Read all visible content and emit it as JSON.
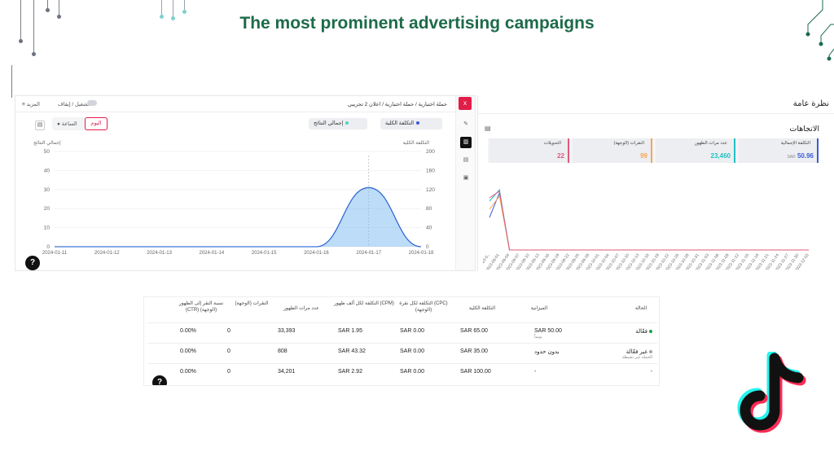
{
  "slide": {
    "title": "The most prominent advertising campaigns"
  },
  "left_panel": {
    "more_label": "≡ المزيد",
    "toggle_label": "تشغيل / إيقاف",
    "breadcrumb": "حملة اختبارية / حملة اختبارية / اعلان 2 تجريبي",
    "close_label": "x",
    "seg_hour": "الساعة",
    "seg_day": "اليوم",
    "pill_total_results": "إجمالي النتائج",
    "pill_total_cost": "التكلفة الكلية",
    "colors": {
      "cost": "#3b5bdb",
      "results": "#4fd1c5"
    }
  },
  "right_panel": {
    "title": "نظرة عامة",
    "section_title": "الاتجاهات",
    "kpis": [
      {
        "label": "التكلفة الإجمالية",
        "value": "50.96",
        "currency": "SAR",
        "color": "#3b5bdb"
      },
      {
        "label": "عدد مرات الظهور",
        "value": "23,460",
        "color": "#22c1c3"
      },
      {
        "label": "النقرات (الوجهة)",
        "value": "99",
        "color": "#f2a65a"
      },
      {
        "label": "التحويلات",
        "value": "22",
        "color": "#e05a7a"
      }
    ]
  },
  "chart_data": [
    {
      "type": "line",
      "x": [
        "2024-01-11",
        "2024-01-12",
        "2024-01-13",
        "2024-01-14",
        "2024-01-15",
        "2024-01-16",
        "2024-01-17",
        "2024-01-18"
      ],
      "series": [
        {
          "name": "التكلفة الكلية",
          "values": [
            0,
            0,
            0,
            0,
            0,
            0,
            124,
            0
          ]
        },
        {
          "name": "إجمالي النتائج",
          "values": [
            0,
            0,
            0,
            0,
            0,
            0,
            31,
            0
          ]
        }
      ],
      "ylabel": "إجمالي النتائج",
      "ylabel_right": "التكلفة الكلية",
      "ylim": [
        0,
        50
      ],
      "ylim_right": [
        0,
        200
      ],
      "y_ticks": [
        0,
        10,
        20,
        30,
        40,
        50
      ],
      "y_ticks_right": [
        0,
        40,
        80,
        120,
        160,
        200
      ],
      "grid": true
    },
    {
      "type": "line",
      "x": [
        "2023-0..",
        "2023-09-01",
        "2023-09-04",
        "2023-09-07",
        "2023-09-10",
        "2023-09-13",
        "2023-09-16",
        "2023-09-19",
        "2023-09-22",
        "2023-09-25",
        "2023-09-28",
        "2023-10-01",
        "2023-10-04",
        "2023-10-07",
        "2023-10-10",
        "2023-10-13",
        "2023-10-16",
        "2023-10-19",
        "2023-10-22",
        "2023-10-25",
        "2023-10-28",
        "2023-10-31",
        "2023-11-03",
        "2023-11-06",
        "2023-11-09",
        "2023-11-12",
        "2023-11-15",
        "2023-11-18",
        "2023-11-21",
        "2023-11-24",
        "2023-11-27",
        "2023-11-30",
        "2023-12-03"
      ],
      "series": [
        {
          "name": "التكلفة الإجمالية",
          "values": [
            20,
            35,
            0,
            0,
            0,
            0,
            0,
            0,
            0,
            0,
            0,
            0,
            0,
            0,
            0,
            0,
            0,
            0,
            0,
            0,
            0,
            0,
            0,
            0,
            0,
            0,
            0,
            0,
            0,
            0,
            0,
            0,
            0
          ]
        },
        {
          "name": "عدد مرات الظهور",
          "values": [
            30,
            37,
            0,
            0,
            0,
            0,
            0,
            0,
            0,
            0,
            0,
            0,
            0,
            0,
            0,
            0,
            0,
            0,
            0,
            0,
            0,
            0,
            0,
            0,
            0,
            0,
            0,
            0,
            0,
            0,
            0,
            0,
            0
          ]
        },
        {
          "name": "النقرات (الوجهة)",
          "values": [
            25,
            33,
            0,
            0,
            0,
            0,
            0,
            0,
            0,
            0,
            0,
            0,
            0,
            0,
            0,
            0,
            0,
            0,
            0,
            0,
            0,
            0,
            0,
            0,
            0,
            0,
            0,
            0,
            0,
            0,
            0,
            0,
            0
          ]
        },
        {
          "name": "التحويلات",
          "values": [
            32,
            36,
            0,
            0,
            0,
            0,
            0,
            0,
            0,
            0,
            0,
            0,
            0,
            0,
            0,
            0,
            0,
            0,
            0,
            0,
            0,
            0,
            0,
            0,
            0,
            0,
            0,
            0,
            0,
            0,
            0,
            0,
            0
          ]
        }
      ],
      "ylim": [
        0,
        40
      ],
      "grid": false
    }
  ],
  "table": {
    "headers": [
      "الحالة",
      "الميزانية",
      "التكلفة الكلية",
      "التكلفة لكل نقرة (CPC) (الوجهة)",
      "التكلفة لكل ألف ظهور (CPM)",
      "عدد مرات الظهور",
      "النقرات (الوجهة)",
      "نسبة النقر إلى الظهور (CTR) (الوجهة)"
    ],
    "rows": [
      {
        "status": "فعّالة",
        "status_sub": "",
        "status_color": "#16a34a",
        "budget": "SAR 50.00",
        "budget_sub": "يومياً",
        "total_cost": "SAR 65.00",
        "cpc": "SAR 0.00",
        "cpm": "SAR 1.95",
        "impressions": "33,393",
        "clicks": "0",
        "ctr": "0.00%"
      },
      {
        "status": "غير فعّالة",
        "status_sub": "الحملة غير نشيطة",
        "status_color": "#9ca3af",
        "budget": "بدون حدود",
        "budget_sub": "",
        "total_cost": "SAR 35.00",
        "cpc": "SAR 0.00",
        "cpm": "SAR 43.32",
        "impressions": "808",
        "clicks": "0",
        "ctr": "0.00%"
      },
      {
        "status": "-",
        "status_sub": "",
        "status_color": "",
        "budget": "-",
        "budget_sub": "",
        "total_cost": "SAR 100.00",
        "cpc": "SAR 0.00",
        "cpm": "SAR 2.92",
        "impressions": "34,201",
        "clicks": "0",
        "ctr": "0.00%"
      }
    ]
  },
  "help_label": "?"
}
